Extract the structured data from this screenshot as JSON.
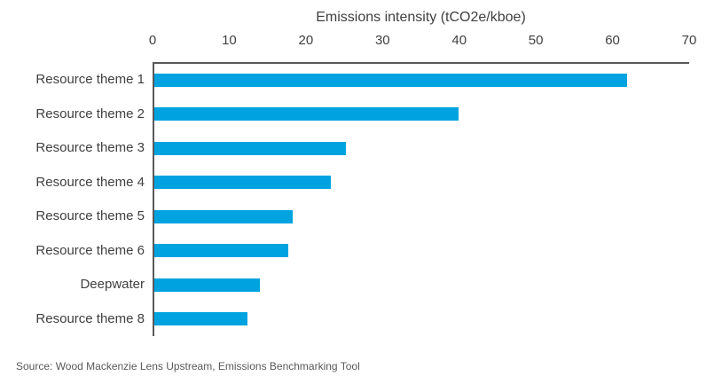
{
  "chart_data": {
    "type": "bar",
    "orientation": "horizontal",
    "title": "Emissions intensity (tCO2e/kboe)",
    "categories": [
      "Resource theme 1",
      "Resource theme 2",
      "Resource theme 3",
      "Resource theme 4",
      "Resource theme 5",
      "Resource theme 6",
      "Deepwater",
      "Resource theme 8"
    ],
    "values": [
      61.7,
      39.7,
      25,
      23,
      18.1,
      17.5,
      13.8,
      12.1
    ],
    "xlabel": "Emissions intensity (tCO2e/kboe)",
    "ylabel": "",
    "xlim": [
      0,
      70
    ],
    "xticks": [
      0,
      10,
      20,
      30,
      40,
      50,
      60,
      70
    ],
    "value_axis_position": "top",
    "grid": false,
    "legend": false,
    "bar_color": "#00A3E0",
    "axis_color": "#595959",
    "text_color": "#404040"
  },
  "footer": {
    "source": "Source: Wood Mackenzie Lens Upstream, Emissions Benchmarking Tool"
  }
}
